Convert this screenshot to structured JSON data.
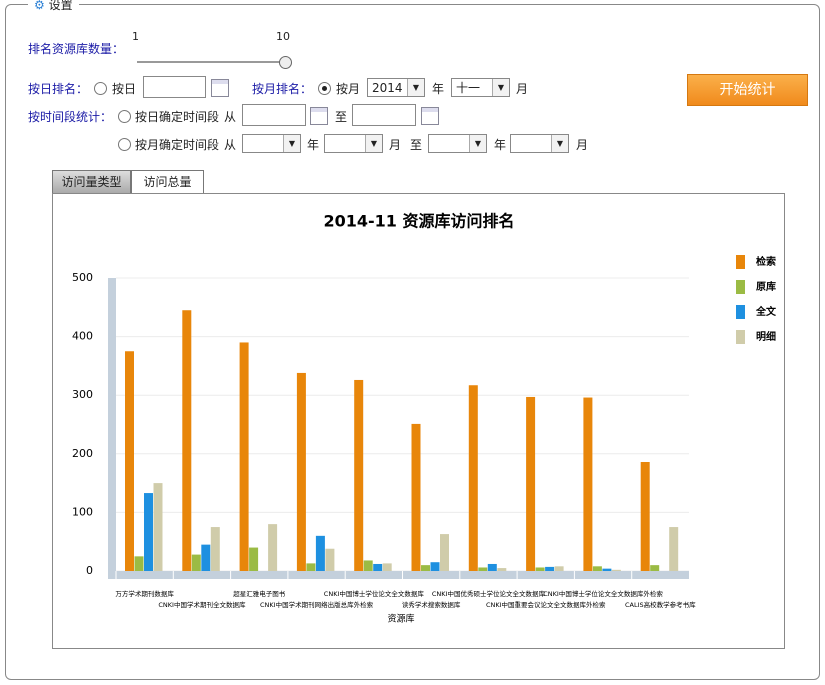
{
  "settings": {
    "title": "设置",
    "rank_count_label": "排名资源库数量：",
    "slider_min": "1",
    "slider_max": "10",
    "by_day_label": "按日排名：",
    "by_day_option": "按日",
    "by_month_label": "按月排名：",
    "by_month_option": "按月",
    "year_value": "2014",
    "year_unit": "年",
    "month_value": "十一",
    "month_unit": "月",
    "start_button": "开始统计",
    "period_label": "按时间段统计：",
    "period_day_option": "按日确定时间段",
    "from": "从",
    "to": "至",
    "period_month_option": "按月确定时间段",
    "from2": "从",
    "year_unit2": "年",
    "month_unit2": "月",
    "to2": "至",
    "year_unit3": "年",
    "month_unit3": "月"
  },
  "tabs": [
    "访问量类型",
    "访问总量"
  ],
  "chart_data": {
    "type": "bar",
    "title": "2014-11 资源库访问排名",
    "x_label": "资源库",
    "categories": [
      "万方学术期刊数据库",
      "CNKI中国学术期刊全文数据库",
      "超星汇雅电子图书",
      "CNKI中国学术期刊网络出版总库外检索",
      "CNKI中国博士学位论文全文数据库",
      "读秀学术搜索数据库",
      "CNKI中国优秀硕士学位论文全文数据库",
      "CNKI中国重要会议论文全文数据库外检索",
      "CNKI中国博士学位论文全文数据库外检索",
      "CALIS高校教学参考书库"
    ],
    "series": [
      {
        "name": "检索",
        "color": "#e8860a",
        "values": [
          375,
          445,
          390,
          338,
          326,
          251,
          317,
          297,
          296,
          186
        ]
      },
      {
        "name": "原库",
        "color": "#9bbb44",
        "values": [
          25,
          28,
          40,
          13,
          18,
          10,
          6,
          6,
          8,
          10
        ]
      },
      {
        "name": "全文",
        "color": "#1e90e0",
        "values": [
          133,
          45,
          0,
          60,
          12,
          15,
          12,
          7,
          4,
          0
        ]
      },
      {
        "name": "明细",
        "color": "#d0ccaa",
        "values": [
          150,
          75,
          80,
          38,
          13,
          63,
          5,
          8,
          2,
          75
        ]
      }
    ],
    "ylim": [
      0,
      500
    ],
    "yticks": [
      0,
      100,
      200,
      300,
      400,
      500
    ],
    "grid": true,
    "legend": "right"
  }
}
